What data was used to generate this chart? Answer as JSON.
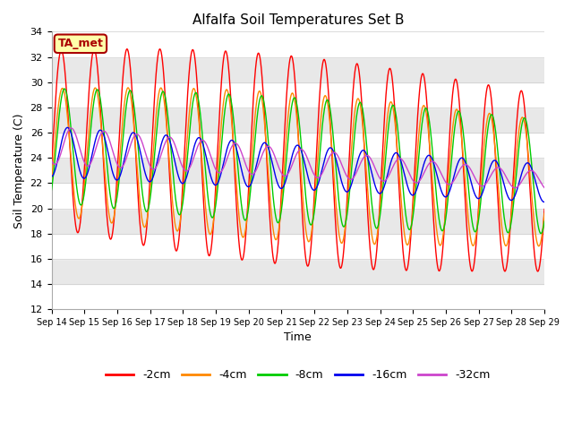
{
  "title": "Alfalfa Soil Temperatures Set B",
  "xlabel": "Time",
  "ylabel": "Soil Temperature (C)",
  "ylim": [
    12,
    34
  ],
  "series_labels": [
    "-2cm",
    "-4cm",
    "-8cm",
    "-16cm",
    "-32cm"
  ],
  "series_colors": [
    "#ff0000",
    "#ff8800",
    "#00cc00",
    "#0000ee",
    "#cc44cc"
  ],
  "xtick_labels": [
    "Sep 14",
    "Sep 15",
    "Sep 16",
    "Sep 17",
    "Sep 18",
    "Sep 19",
    "Sep 20",
    "Sep 21",
    "Sep 22",
    "Sep 23",
    "Sep 24",
    "Sep 25",
    "Sep 26",
    "Sep 27",
    "Sep 28",
    "Sep 29"
  ],
  "annotation_text": "TA_met",
  "annotation_bg": "#ffffaa",
  "annotation_border": "#aa0000",
  "background_color": "#e8e8e8",
  "band_color_light": "#f0f0f0",
  "band_color_dark": "#e0e0e0"
}
